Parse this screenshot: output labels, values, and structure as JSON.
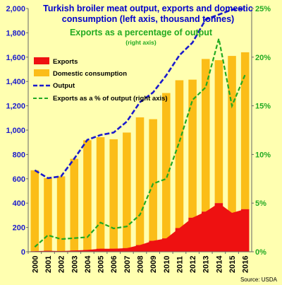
{
  "chart_data": {
    "type": "bar",
    "title_lines": [
      "Turkish broiler meat output, exports and domestic",
      "consumption (left axis, thousand tonnes)"
    ],
    "subtitle": "Exports as a percentage of output",
    "subtitle_note": "(right axis)",
    "source": "Source: USDA",
    "categories": [
      "2000",
      "2001",
      "2002",
      "2003",
      "2004",
      "2005",
      "2006",
      "2007",
      "2008",
      "2009",
      "2010",
      "2011",
      "2012",
      "2013",
      "2014",
      "2015",
      "2016"
    ],
    "series": [
      {
        "name": "Exports",
        "kind": "stacked-bar",
        "axis": "left",
        "values": [
          5,
          8,
          6,
          10,
          15,
          25,
          25,
          30,
          55,
          90,
          110,
          195,
          280,
          330,
          400,
          320,
          350
        ]
      },
      {
        "name": "Domestic consumption",
        "kind": "stacked-bar",
        "axis": "left",
        "values": [
          665,
          597,
          614,
          754,
          902,
          917,
          900,
          950,
          1050,
          1000,
          1195,
          1215,
          1135,
          1255,
          1175,
          1290,
          1290
        ]
      },
      {
        "name": "Output",
        "kind": "line",
        "axis": "left",
        "values": [
          670,
          605,
          620,
          765,
          920,
          960,
          980,
          1070,
          1230,
          1310,
          1450,
          1615,
          1720,
          1910,
          1950,
          1990,
          2000
        ]
      },
      {
        "name": "Exports as a % of output (right axis)",
        "kind": "line",
        "axis": "right",
        "values": [
          0.5,
          1.7,
          1.3,
          1.4,
          1.5,
          3.0,
          2.4,
          2.6,
          3.8,
          7.0,
          7.5,
          11.3,
          15.6,
          16.9,
          21.9,
          15.0,
          18.2
        ]
      }
    ],
    "y_left": {
      "min": 0,
      "max": 2000,
      "ticks": [
        0,
        200,
        400,
        600,
        800,
        1000,
        1200,
        1400,
        1600,
        1800,
        2000
      ]
    },
    "y_right": {
      "min": 0,
      "max": 25,
      "ticks": [
        "0%",
        "5%",
        "10%",
        "15%",
        "20%",
        "25%"
      ]
    },
    "legend_position": "top-left",
    "grid": false,
    "colors": {
      "background": "#ffffb0",
      "exports": "#ee1111",
      "domestic": "#fbbd18",
      "output": "#1a1acc",
      "pct": "#22aa22",
      "title": "#0000cc",
      "subtitle": "#22aa22",
      "left_axis": "#1a1acc",
      "right_axis": "#22aa22"
    }
  }
}
